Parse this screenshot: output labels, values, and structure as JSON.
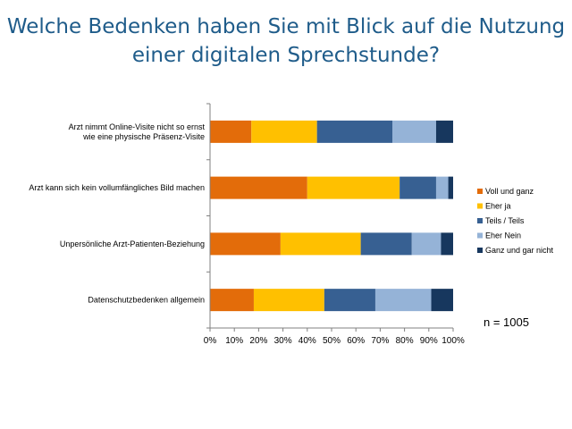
{
  "title_lines": [
    "Welche Bedenken haben Sie mit Blick auf die Nutzung",
    "einer digitalen Sprechstunde?"
  ],
  "sample_size": "n = 1005",
  "chart_data": {
    "type": "bar",
    "orientation": "horizontal",
    "stacked": true,
    "percent": true,
    "categories": [
      [
        "Arzt nimmt Online-Visite nicht so ernst",
        "wie eine physische Präsenz-Visite"
      ],
      [
        "Arzt kann sich kein vollumfängliches Bild machen"
      ],
      [
        "Unpersönliche Arzt-Patienten-Beziehung"
      ],
      [
        "Datenschutzbedenken allgemein"
      ]
    ],
    "series": [
      {
        "name": "Voll und ganz",
        "color": "#e36c0a",
        "values": [
          17,
          40,
          29,
          18
        ]
      },
      {
        "name": "Eher ja",
        "color": "#ffc000",
        "values": [
          27,
          38,
          33,
          29
        ]
      },
      {
        "name": "Teils / Teils",
        "color": "#376092",
        "values": [
          31,
          15,
          21,
          21
        ]
      },
      {
        "name": "Eher Nein",
        "color": "#95b3d7",
        "values": [
          18,
          5,
          12,
          23
        ]
      },
      {
        "name": "Ganz und gar nicht",
        "color": "#17375e",
        "values": [
          7,
          2,
          5,
          9
        ]
      }
    ],
    "xlim": [
      0,
      100
    ],
    "x_ticks": [
      "0%",
      "10%",
      "20%",
      "30%",
      "40%",
      "50%",
      "60%",
      "70%",
      "80%",
      "90%",
      "100%"
    ],
    "grid": false,
    "legend": "right"
  }
}
